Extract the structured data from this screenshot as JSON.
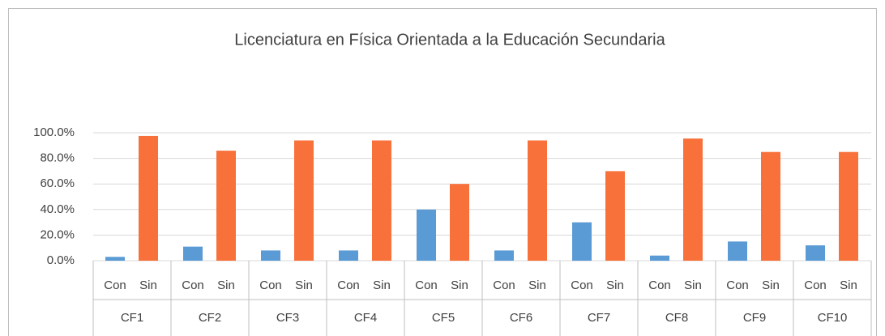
{
  "chart_data": {
    "type": "bar",
    "title": "Licenciatura en Física Orientada a la Educación Secundaria",
    "categories": [
      "CF1",
      "CF2",
      "CF3",
      "CF4",
      "CF5",
      "CF6",
      "CF7",
      "CF8",
      "CF9",
      "CF10"
    ],
    "series": [
      {
        "name": "Con",
        "color": "#5b9bd5",
        "values": [
          3,
          11,
          8,
          8,
          40,
          8,
          30,
          4,
          15,
          12
        ]
      },
      {
        "name": "Sin",
        "color": "#f8703a",
        "values": [
          97.5,
          86,
          94,
          94,
          60,
          94,
          70,
          95.5,
          85,
          85
        ]
      }
    ],
    "ylim": [
      0,
      100
    ],
    "yticks": [
      {
        "value": 0,
        "label": "0.0%"
      },
      {
        "value": 20,
        "label": "20.0%"
      },
      {
        "value": 40,
        "label": "40.0%"
      },
      {
        "value": 60,
        "label": "60.0%"
      },
      {
        "value": 80,
        "label": "80.0%"
      },
      {
        "value": 100,
        "label": "100.0%"
      }
    ],
    "grid": true
  }
}
